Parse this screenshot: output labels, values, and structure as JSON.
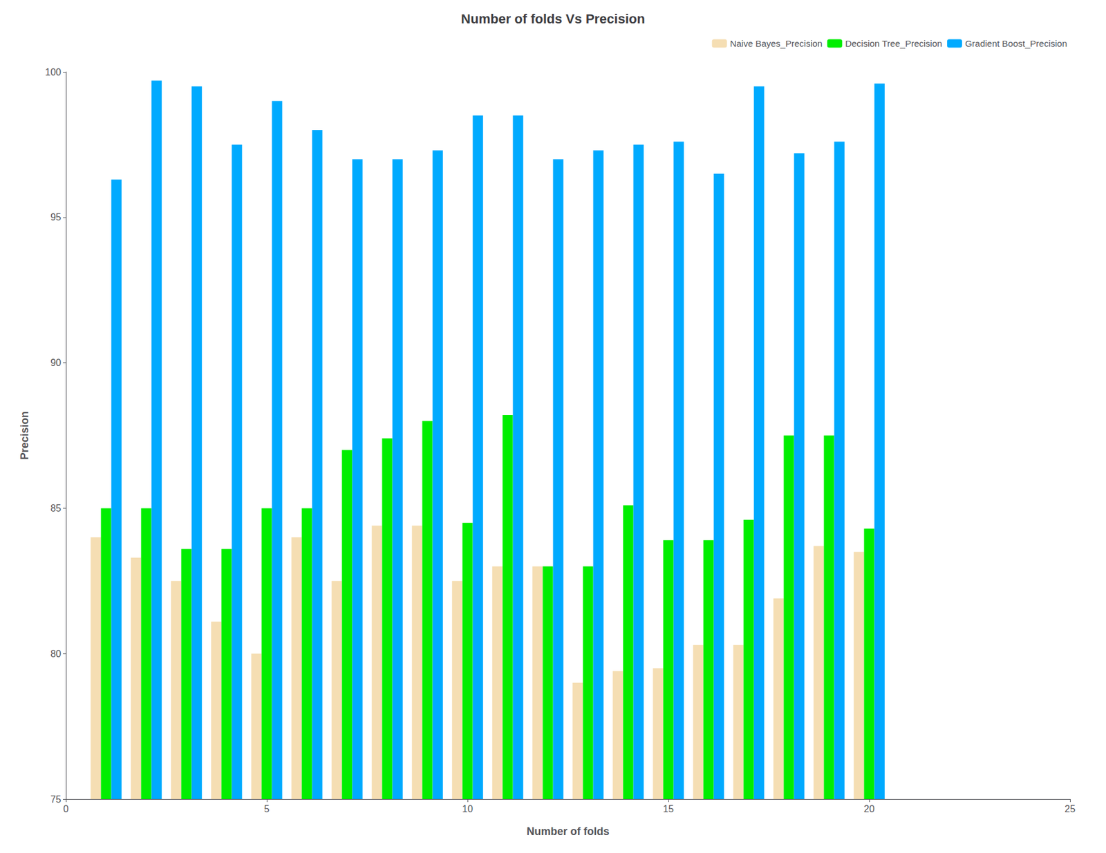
{
  "chart_data": {
    "type": "bar",
    "title": "Number of folds Vs Precision",
    "xlabel": "Number of folds",
    "ylabel": "Precision",
    "x": [
      1,
      2,
      3,
      4,
      5,
      6,
      7,
      8,
      9,
      10,
      11,
      12,
      13,
      14,
      15,
      16,
      17,
      18,
      19,
      20
    ],
    "series": [
      {
        "name": "Naive Bayes_Precision",
        "color": "#F5DEB3",
        "values": [
          84.0,
          83.3,
          82.5,
          81.1,
          80.0,
          84.0,
          82.5,
          84.4,
          84.4,
          82.5,
          83.0,
          83.0,
          79.0,
          79.4,
          79.5,
          80.3,
          80.3,
          81.9,
          83.7,
          83.5
        ]
      },
      {
        "name": "Decision Tree_Precision",
        "color": "#00EE00",
        "values": [
          85.0,
          85.0,
          83.6,
          83.6,
          85.0,
          85.0,
          87.0,
          87.4,
          88.0,
          84.5,
          88.2,
          83.0,
          83.0,
          85.1,
          83.9,
          83.9,
          84.6,
          87.5,
          87.5,
          84.3
        ]
      },
      {
        "name": "Gradient Boost_Precision",
        "color": "#00AAFF",
        "values": [
          96.3,
          99.7,
          99.5,
          97.5,
          99.0,
          98.0,
          97.0,
          97.0,
          97.3,
          98.5,
          98.5,
          97.0,
          97.3,
          97.5,
          97.6,
          96.5,
          99.5,
          97.2,
          97.6,
          99.6
        ]
      }
    ],
    "xlim": [
      0,
      25
    ],
    "xticks": [
      0,
      5,
      10,
      15,
      20,
      25
    ],
    "ylim": [
      75,
      100
    ],
    "yticks": [
      75,
      80,
      85,
      90,
      95,
      100
    ],
    "grid": false,
    "legend": "upper right"
  }
}
